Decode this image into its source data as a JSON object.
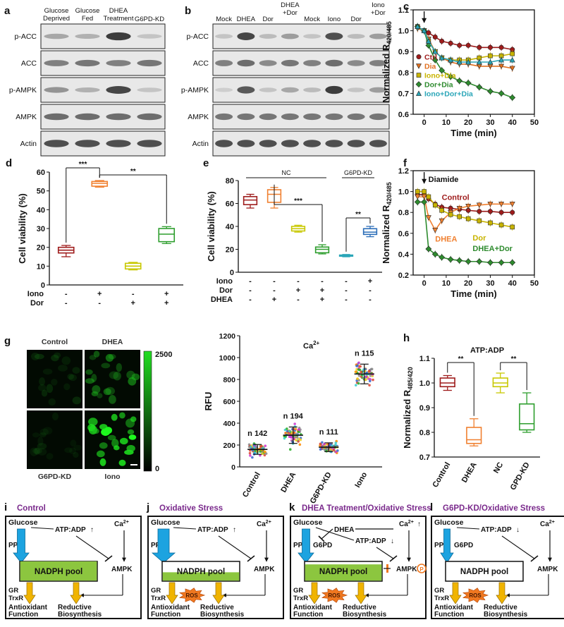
{
  "panels": {
    "a": {
      "letter": "a",
      "columns": [
        "Glucose Deprived",
        "Glucose Fed",
        "DHEA Treatment",
        "G6PD-KD"
      ],
      "rows": [
        "p-ACC",
        "ACC",
        "p-AMPK",
        "AMPK",
        "Actin"
      ],
      "band_intensity": [
        [
          0.35,
          0.3,
          0.9,
          0.2
        ],
        [
          0.55,
          0.6,
          0.55,
          0.6
        ],
        [
          0.45,
          0.3,
          0.85,
          0.2
        ],
        [
          0.65,
          0.65,
          0.65,
          0.65
        ],
        [
          0.8,
          0.8,
          0.8,
          0.8
        ]
      ]
    },
    "b": {
      "letter": "b",
      "columns": [
        "Mock",
        "DHEA",
        "Dor",
        "DHEA +Dor",
        "Mock",
        "Iono",
        "Dor",
        "Iono +Dor"
      ],
      "rows": [
        "p-ACC",
        "ACC",
        "p-AMPK",
        "AMPK",
        "Actin"
      ],
      "band_intensity": [
        [
          0.2,
          0.85,
          0.25,
          0.4,
          0.2,
          0.8,
          0.25,
          0.4
        ],
        [
          0.55,
          0.65,
          0.5,
          0.6,
          0.55,
          0.65,
          0.5,
          0.55
        ],
        [
          0.15,
          0.75,
          0.2,
          0.35,
          0.25,
          0.9,
          0.2,
          0.4
        ],
        [
          0.6,
          0.6,
          0.6,
          0.6,
          0.6,
          0.6,
          0.6,
          0.6
        ],
        [
          0.8,
          0.8,
          0.8,
          0.8,
          0.8,
          0.8,
          0.8,
          0.8
        ]
      ]
    },
    "g": {
      "letter": "g",
      "images": [
        "Control",
        "DHEA",
        "G6PD-KD",
        "Iono"
      ],
      "image_brightness": [
        0.2,
        0.45,
        0.15,
        0.9
      ],
      "colorbar_max": "2500",
      "colorbar_min": "0"
    },
    "c": {
      "letter": "c"
    },
    "d": {
      "letter": "d"
    },
    "e": {
      "letter": "e"
    },
    "f": {
      "letter": "f"
    },
    "h": {
      "letter": "h"
    }
  },
  "chart_data": [
    {
      "id": "c",
      "type": "line",
      "xlabel": "Time (min)",
      "ylabel": "Normalized R",
      "ylabel_sub": "420/485",
      "xlim": [
        -5,
        50
      ],
      "ylim": [
        0.6,
        1.1
      ],
      "xticks": [
        "0",
        "10",
        "20",
        "30",
        "40",
        "50"
      ],
      "yticks": [
        "0.6",
        "0.7",
        "0.8",
        "0.9",
        "1.0",
        "1.1"
      ],
      "x": [
        -3,
        0,
        2,
        5,
        8,
        12,
        16,
        20,
        25,
        30,
        35,
        40
      ],
      "series": [
        {
          "name": "Ctrl",
          "color": "#9e1b1b",
          "values": [
            1.02,
            1.0,
            0.99,
            0.97,
            0.95,
            0.94,
            0.93,
            0.93,
            0.92,
            0.92,
            0.92,
            0.91
          ]
        },
        {
          "name": "Dia",
          "color": "#e07020",
          "values": [
            1.01,
            1.0,
            0.96,
            0.9,
            0.87,
            0.85,
            0.84,
            0.84,
            0.83,
            0.83,
            0.83,
            0.82
          ]
        },
        {
          "name": "Iono+Dia",
          "color": "#c8b400",
          "values": [
            1.02,
            1.0,
            0.95,
            0.9,
            0.87,
            0.86,
            0.86,
            0.86,
            0.87,
            0.88,
            0.88,
            0.89
          ]
        },
        {
          "name": "Dor+Dia",
          "color": "#2e8b2e",
          "values": [
            1.02,
            1.0,
            0.93,
            0.86,
            0.81,
            0.78,
            0.76,
            0.75,
            0.73,
            0.71,
            0.7,
            0.68
          ]
        },
        {
          "name": "Iono+Dor+Dia",
          "color": "#2aa6b8",
          "values": [
            1.02,
            1.0,
            0.95,
            0.9,
            0.87,
            0.86,
            0.85,
            0.85,
            0.85,
            0.85,
            0.86,
            0.86
          ]
        }
      ]
    },
    {
      "id": "d",
      "type": "box",
      "ylabel": "Cell viability (%)",
      "ylim": [
        0,
        60
      ],
      "yticks": [
        "0",
        "10",
        "20",
        "30",
        "40",
        "50",
        "60"
      ],
      "row_labels": [
        "Iono",
        "Dor"
      ],
      "columns": [
        [
          "-",
          "-"
        ],
        [
          "+",
          "-"
        ],
        [
          "-",
          "+"
        ],
        [
          "+",
          "+"
        ]
      ],
      "colors": [
        "#9e1b1b",
        "#f08030",
        "#c8c800",
        "#2e9e2e"
      ],
      "boxes": [
        {
          "min": 15,
          "q1": 17,
          "median": 18.5,
          "q3": 20,
          "max": 21
        },
        {
          "min": 52,
          "q1": 52.5,
          "median": 54,
          "q3": 55,
          "max": 55.5
        },
        {
          "min": 8,
          "q1": 8.5,
          "median": 10,
          "q3": 11.5,
          "max": 12
        },
        {
          "min": 22,
          "q1": 23,
          "median": 27,
          "q3": 30,
          "max": 31
        }
      ],
      "significance": [
        {
          "from": 0,
          "to": 1,
          "label": "***"
        },
        {
          "from": 1,
          "to": 3,
          "label": "**"
        }
      ]
    },
    {
      "id": "e",
      "type": "box",
      "ylabel": "Cell viability (%)",
      "ylim": [
        0,
        80
      ],
      "yticks": [
        "0",
        "20",
        "40",
        "60",
        "80"
      ],
      "row_labels": [
        "Iono",
        "Dor",
        "DHEA"
      ],
      "columns": [
        [
          "-",
          "-",
          "-"
        ],
        [
          "-",
          "-",
          "+"
        ],
        [
          "-",
          "+",
          "-"
        ],
        [
          "-",
          "+",
          "+"
        ],
        [
          "-",
          "-",
          "-"
        ],
        [
          "+",
          "-",
          "-"
        ]
      ],
      "colors": [
        "#9e1b1b",
        "#f08030",
        "#c8c800",
        "#2e9e2e",
        "#2aa6b8",
        "#2a6db8"
      ],
      "boxes": [
        {
          "min": 56,
          "q1": 59,
          "median": 63,
          "q3": 66,
          "max": 68
        },
        {
          "min": 56,
          "q1": 61,
          "median": 68,
          "q3": 72,
          "max": 74
        },
        {
          "min": 35,
          "q1": 36,
          "median": 38,
          "q3": 40,
          "max": 41
        },
        {
          "min": 16,
          "q1": 17,
          "median": 20,
          "q3": 22,
          "max": 24
        },
        {
          "min": 13.5,
          "q1": 14,
          "median": 14.5,
          "q3": 15,
          "max": 15.5
        },
        {
          "min": 31,
          "q1": 33,
          "median": 35,
          "q3": 38,
          "max": 40
        }
      ],
      "groups": [
        {
          "label": "NC",
          "from": 0,
          "to": 3
        },
        {
          "label": "G6PD-KD",
          "from": 4,
          "to": 5
        }
      ],
      "significance": [
        {
          "from": 1,
          "to": 3,
          "label": "***"
        },
        {
          "from": 4,
          "to": 5,
          "label": "**"
        }
      ]
    },
    {
      "id": "f",
      "type": "line",
      "xlabel": "Time (min)",
      "ylabel": "Normalized R",
      "ylabel_sub": "420/485",
      "xlim": [
        -5,
        50
      ],
      "ylim": [
        0.2,
        1.2
      ],
      "xticks": [
        "0",
        "10",
        "20",
        "30",
        "40",
        "50"
      ],
      "yticks": [
        "0.2",
        "0.4",
        "0.6",
        "0.8",
        "1.0",
        "1.2"
      ],
      "annotation": "Diamide",
      "x": [
        -3,
        0,
        2,
        5,
        8,
        12,
        16,
        20,
        25,
        30,
        35,
        40
      ],
      "series": [
        {
          "name": "Control",
          "color": "#9e1b1b",
          "values": [
            0.97,
            0.97,
            0.93,
            0.88,
            0.85,
            0.84,
            0.83,
            0.82,
            0.81,
            0.81,
            0.8,
            0.8
          ]
        },
        {
          "name": "DHEA",
          "color": "#f08030",
          "values": [
            0.95,
            0.95,
            0.75,
            0.63,
            0.72,
            0.8,
            0.84,
            0.86,
            0.87,
            0.88,
            0.88,
            0.88
          ]
        },
        {
          "name": "Dor",
          "color": "#c8b400",
          "values": [
            1.0,
            1.0,
            0.95,
            0.87,
            0.82,
            0.78,
            0.76,
            0.74,
            0.72,
            0.7,
            0.68,
            0.66
          ]
        },
        {
          "name": "DHEA+Dor",
          "color": "#2e8b2e",
          "values": [
            0.9,
            0.9,
            0.45,
            0.4,
            0.37,
            0.35,
            0.34,
            0.33,
            0.33,
            0.32,
            0.32,
            0.32
          ]
        }
      ]
    },
    {
      "id": "g-scatter",
      "type": "scatter",
      "title": "Ca",
      "title_sup": "2+",
      "ylabel": "RFU",
      "ylim": [
        0,
        1200
      ],
      "yticks": [
        "0",
        "200",
        "400",
        "600",
        "800",
        "1000",
        "1200"
      ],
      "categories": [
        "Control",
        "DHEA",
        "G6PD-KD",
        "Iono"
      ],
      "n_labels": [
        "n 142",
        "n 194",
        "n 111",
        "n 115"
      ],
      "means": [
        160,
        290,
        180,
        850
      ],
      "sd": [
        45,
        75,
        40,
        90
      ]
    },
    {
      "id": "h",
      "type": "box",
      "title": "ATP:ADP",
      "ylabel": "Normalized R",
      "ylabel_sub": "485/420",
      "ylim": [
        0.7,
        1.1
      ],
      "yticks": [
        "0.7",
        "0.8",
        "0.9",
        "1.0",
        "1.1"
      ],
      "categories": [
        "Control",
        "DHEA",
        "NC",
        "GPD-KD"
      ],
      "colors": [
        "#9e1b1b",
        "#f08030",
        "#c8c800",
        "#2e9e2e"
      ],
      "boxes": [
        {
          "min": 0.97,
          "q1": 0.985,
          "median": 1.0,
          "q3": 1.02,
          "max": 1.03
        },
        {
          "min": 0.745,
          "q1": 0.755,
          "median": 0.77,
          "q3": 0.82,
          "max": 0.855
        },
        {
          "min": 0.96,
          "q1": 0.985,
          "median": 1.0,
          "q3": 1.02,
          "max": 1.04
        },
        {
          "min": 0.8,
          "q1": 0.81,
          "median": 0.835,
          "q3": 0.915,
          "max": 0.96
        }
      ],
      "significance": [
        {
          "from": 0,
          "to": 1,
          "label": "**"
        },
        {
          "from": 2,
          "to": 3,
          "label": "**"
        }
      ]
    }
  ],
  "schematics": [
    {
      "letter": "i",
      "title": "Control",
      "variant": "control"
    },
    {
      "letter": "j",
      "title": "Oxidative Stress",
      "variant": "oxidative"
    },
    {
      "letter": "k",
      "title": "DHEA Treatment/Oxidative Stress",
      "variant": "dhea"
    },
    {
      "letter": "l",
      "title": "G6PD-KD/Oxidative Stress",
      "variant": "g6pdkd"
    }
  ],
  "schematic_labels": {
    "glucose": "Glucose",
    "ppp": "PPP",
    "atp_adp": "ATP:ADP",
    "ca": "Ca",
    "ca_sup": "2+",
    "nadph": "NADPH pool",
    "ampk": "AMPK",
    "gr": "GR",
    "trxr": "TrxR",
    "ros": "ROS",
    "antioxidant": "Antioxidant",
    "antioxidant2": "Function",
    "reductive": "Reductive",
    "reductive2": "Biosynthesis",
    "dhea": "DHEA",
    "g6pd": "G6PD",
    "p": "P",
    "up_arrow": "↑",
    "down_arrow": "↓"
  },
  "palette": {
    "title_purple": "#7a2a8c",
    "nadph_green": "#8cc63f",
    "ppp_blue": "#1ca3e0",
    "arrow_gold": "#f0b400",
    "ros_orange": "#f07820",
    "gfp_green": "#22dd22"
  }
}
